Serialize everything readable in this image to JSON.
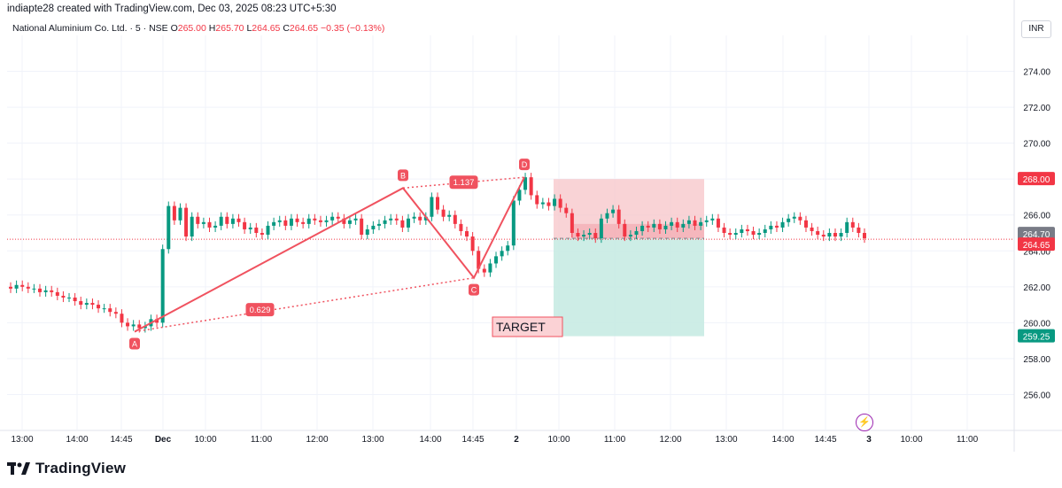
{
  "header": {
    "credit": "indiapte28 created with TradingView.com, Dec 03, 2025 08:23 UTC+5:30",
    "symbol": "National Aluminium Co. Ltd. · 5 · NSE",
    "open_label": "O",
    "open": "265.00",
    "high_label": "H",
    "high": "265.70",
    "low_label": "L",
    "low": "264.65",
    "close_label": "C",
    "close": "264.65",
    "change": "−0.35 (−0.13%)",
    "currency": "INR"
  },
  "footer": {
    "brand": "TradingView"
  },
  "colors": {
    "up": "#089981",
    "down": "#f23645",
    "pattern": "#f0525f",
    "stop_zone": "#f7c4c8",
    "target_zone": "#c8ebe3"
  },
  "icons": {
    "flash": "lightning-icon",
    "logo": "tradingview-logo-icon"
  },
  "chart_data": {
    "type": "candlestick",
    "ylim": [
      254.0,
      276.0
    ],
    "y_ticks": [
      "274.00",
      "272.00",
      "270.00",
      "268.00",
      "266.00",
      "264.00",
      "262.00",
      "260.00",
      "258.00",
      "256.00"
    ],
    "x_ticks": [
      "13:00",
      "14:00",
      "14:45",
      "Dec",
      "10:00",
      "11:00",
      "12:00",
      "13:00",
      "14:00",
      "14:45",
      "2",
      "10:00",
      "11:00",
      "12:00",
      "13:00",
      "14:00",
      "14:45",
      "3",
      "10:00",
      "11:00"
    ],
    "bars_per_session": 75,
    "sessions_shown": 4.5,
    "candles_close": [
      261.9,
      262.1,
      262.0,
      261.9,
      261.9,
      261.7,
      261.8,
      261.7,
      261.5,
      261.4,
      261.4,
      261.2,
      261.0,
      261.1,
      261.0,
      260.8,
      260.8,
      260.6,
      260.5,
      260.0,
      259.8,
      259.9,
      259.7,
      259.8,
      260.2,
      260.0,
      264.1,
      266.5,
      265.7,
      266.4,
      264.8,
      265.9,
      265.5,
      265.6,
      265.3,
      265.4,
      265.9,
      265.5,
      265.8,
      265.6,
      265.2,
      265.3,
      265.0,
      264.9,
      265.4,
      265.6,
      265.7,
      265.4,
      265.8,
      265.6,
      265.5,
      265.8,
      265.7,
      265.6,
      265.7,
      265.9,
      265.8,
      265.5,
      265.7,
      265.8,
      264.9,
      265.2,
      265.4,
      265.5,
      265.7,
      265.8,
      265.7,
      265.3,
      265.8,
      265.9,
      265.7,
      265.9,
      267.0,
      266.3,
      265.9,
      266.0,
      265.5,
      265.1,
      264.8,
      264.0,
      263.0,
      262.8,
      263.3,
      263.7,
      264.0,
      264.3,
      266.8,
      267.4,
      268.1,
      267.1,
      266.6,
      266.7,
      266.5,
      266.9,
      266.4,
      266.1,
      265.0,
      264.8,
      264.9,
      265.0,
      264.7,
      265.8,
      266.1,
      266.3,
      265.5,
      264.8,
      264.9,
      265.1,
      265.4,
      265.3,
      265.5,
      265.2,
      265.4,
      265.6,
      265.3,
      265.5,
      265.7,
      265.4,
      265.6,
      265.7,
      265.8,
      265.3,
      265.0,
      264.9,
      265.0,
      265.2,
      265.1,
      264.9,
      265.0,
      265.2,
      265.4,
      265.3,
      265.6,
      265.8,
      265.9,
      265.7,
      265.3,
      265.1,
      264.9,
      264.8,
      265.0,
      264.8,
      265.0,
      265.6,
      265.3,
      265.0,
      264.7
    ],
    "last_close": 264.65,
    "price_labels": [
      {
        "label": "268.00",
        "kind": "stop"
      },
      {
        "label": "264.70",
        "kind": "entry"
      },
      {
        "label": "264.65",
        "kind": "last"
      },
      {
        "label": "259.25",
        "kind": "target"
      }
    ],
    "harmonic": {
      "points": [
        {
          "name": "A",
          "price": 259.5
        },
        {
          "name": "B",
          "price": 267.5
        },
        {
          "name": "C",
          "price": 262.5
        },
        {
          "name": "D",
          "price": 268.1
        }
      ],
      "ratios": [
        {
          "label": "1.137",
          "between": "B-D"
        },
        {
          "label": "0.629",
          "between": "A-C"
        }
      ]
    },
    "position": {
      "stop": 268.0,
      "entry": 264.7,
      "target": 259.25,
      "note": "TARGET"
    }
  }
}
